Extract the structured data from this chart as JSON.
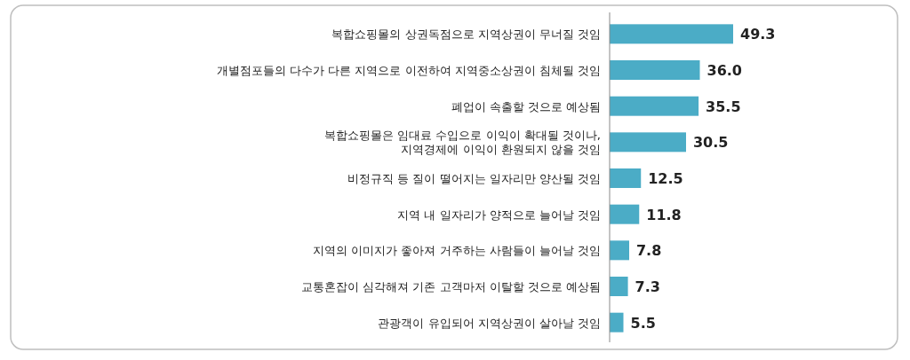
{
  "chart_data": {
    "type": "bar",
    "orientation": "horizontal",
    "categories": [
      "복합쇼핑몰의 상권독점으로 지역상권이 무너질 것임",
      "개별점포들의 다수가 다른 지역으로 이전하여 지역중소상권이 침체될 것임",
      "폐업이 속출할 것으로 예상됨",
      "복합쇼핑몰은 임대료 수입으로 이익이 확대될 것이나,\n지역경제에 이익이 환원되지 않을 것임",
      "비정규직 등 질이 떨어지는 일자리만 양산될 것임",
      "지역 내 일자리가 양적으로 늘어날 것임",
      "지역의 이미지가 좋아져 거주하는 사람들이 늘어날 것임",
      "교통혼잡이 심각해져 기존 고객마저 이탈할 것으로 예상됨",
      "관광객이 유입되어 지역상권이 살아날 것임"
    ],
    "values": [
      49.3,
      36.0,
      35.5,
      30.5,
      12.5,
      11.8,
      7.8,
      7.3,
      5.5
    ],
    "value_labels": [
      "49.3",
      "36.0",
      "35.5",
      "30.5",
      "12.5",
      "11.8",
      "7.8",
      "7.3",
      "5.5"
    ],
    "color": "#4bacc6"
  }
}
